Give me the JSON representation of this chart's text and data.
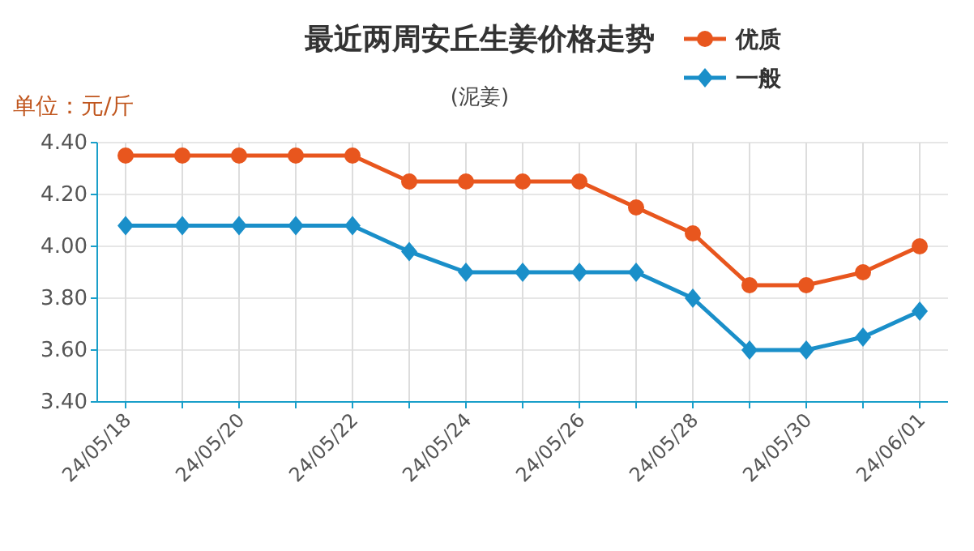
{
  "chart_data": {
    "type": "line",
    "title": "最近两周安丘生姜价格走势",
    "subtitle": "(泥姜)",
    "ylabel": "单位：元/斤",
    "categories": [
      "24/05/18",
      null,
      "24/05/20",
      null,
      "24/05/22",
      null,
      "24/05/24",
      null,
      "24/05/26",
      null,
      "24/05/28",
      null,
      "24/05/30",
      null,
      "24/06/01"
    ],
    "series": [
      {
        "name": "优质",
        "color": "#e8561e",
        "marker": "circle",
        "values": [
          4.35,
          4.35,
          4.35,
          4.35,
          4.35,
          4.25,
          4.25,
          4.25,
          4.25,
          4.15,
          4.05,
          3.85,
          3.85,
          3.9,
          4.0
        ]
      },
      {
        "name": "一般",
        "color": "#1a8fc9",
        "marker": "diamond",
        "values": [
          4.08,
          4.08,
          4.08,
          4.08,
          4.08,
          3.98,
          3.9,
          3.9,
          3.9,
          3.9,
          3.8,
          3.6,
          3.6,
          3.65,
          3.75
        ]
      }
    ],
    "ylim": [
      3.4,
      4.4
    ],
    "yticks": [
      {
        "value": 3.4,
        "label": "3.40"
      },
      {
        "value": 3.6,
        "label": "3.60"
      },
      {
        "value": 3.8,
        "label": "3.80"
      },
      {
        "value": 4.0,
        "label": "4.00"
      },
      {
        "value": 4.2,
        "label": "4.20"
      },
      {
        "value": 4.4,
        "label": "4.40"
      }
    ],
    "grid": true,
    "legend": "top right",
    "line_style": "solid"
  }
}
